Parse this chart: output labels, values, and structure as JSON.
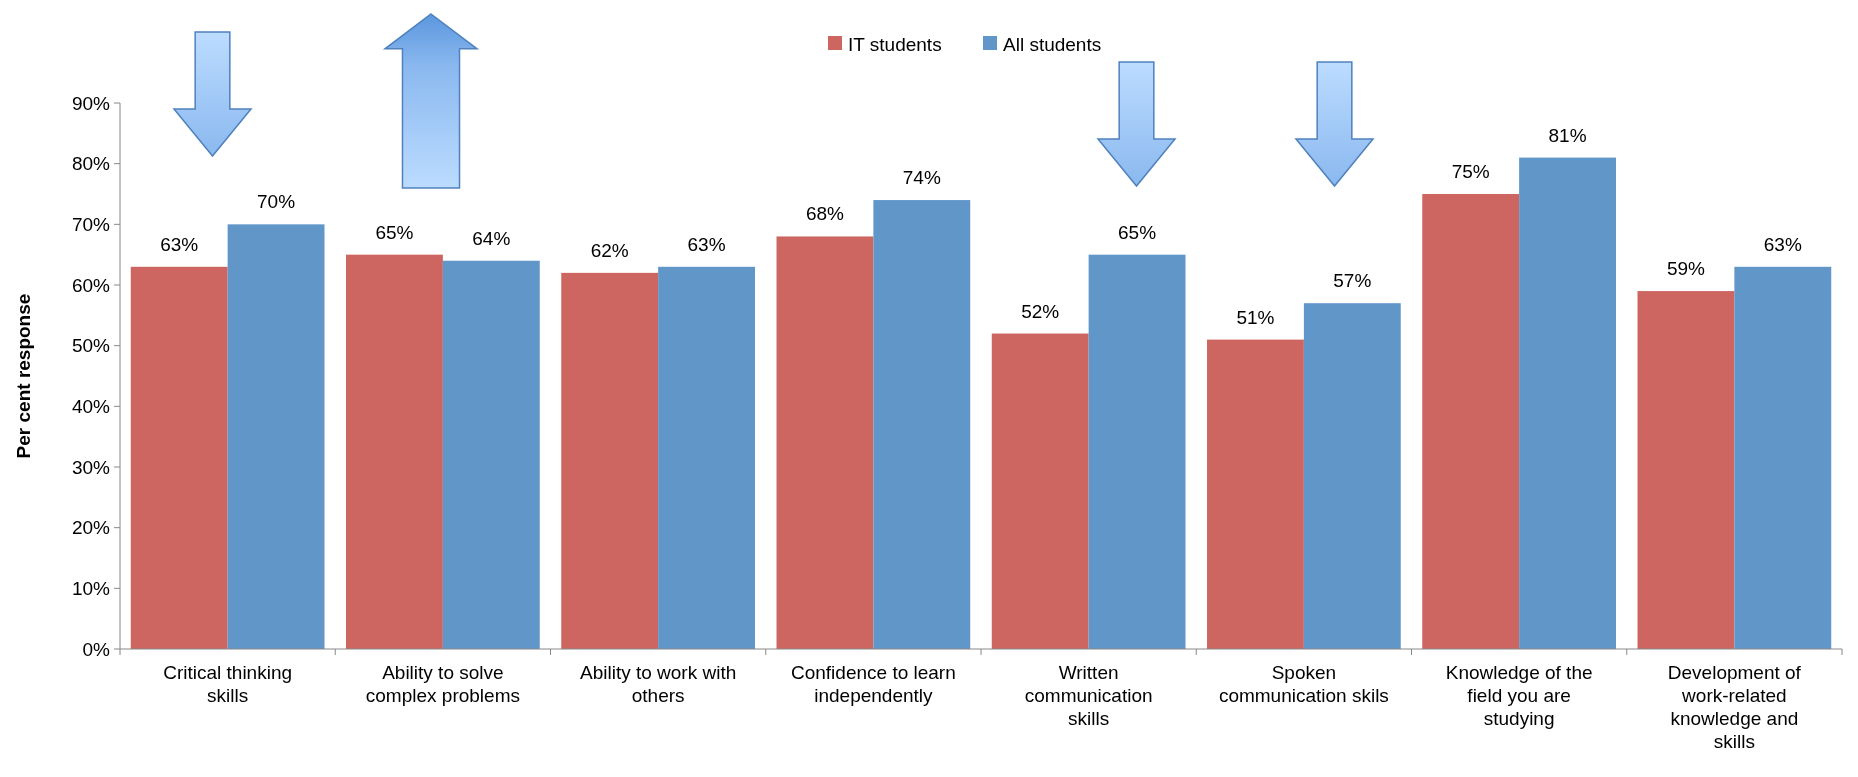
{
  "chart_data": {
    "type": "bar",
    "ylabel": "Per cent response",
    "categories": [
      "Critical thinking skills",
      "Ability to solve complex problems",
      "Ability to work with others",
      "Confidence to learn independently",
      "Written communication skills",
      "Spoken communication skils",
      "Knowledge of the field you are studying",
      "Development of work-related knowledge and skills"
    ],
    "series": [
      {
        "name": "IT students",
        "color": "#cd6660",
        "values": [
          63,
          65,
          62,
          68,
          52,
          51,
          75,
          59
        ],
        "value_labels": [
          "63%",
          "65%",
          "62%",
          "68%",
          "52%",
          "51%",
          "75%",
          "59%"
        ]
      },
      {
        "name": "All students",
        "color": "#6196c9",
        "values": [
          70,
          64,
          63,
          74,
          65,
          57,
          81,
          63
        ],
        "value_labels": [
          "70%",
          "64%",
          "63%",
          "74%",
          "65%",
          "57%",
          "81%",
          "63%"
        ]
      }
    ],
    "ylim": [
      0,
      90
    ],
    "yticks": [
      {
        "value": 0,
        "label": "0%"
      },
      {
        "value": 10,
        "label": "10%"
      },
      {
        "value": 20,
        "label": "20%"
      },
      {
        "value": 30,
        "label": "30%"
      },
      {
        "value": 40,
        "label": "40%"
      },
      {
        "value": 50,
        "label": "50%"
      },
      {
        "value": 60,
        "label": "60%"
      },
      {
        "value": 70,
        "label": "70%"
      },
      {
        "value": 80,
        "label": "80%"
      },
      {
        "value": 90,
        "label": "90%"
      }
    ],
    "legend": "top",
    "grid": false
  }
}
